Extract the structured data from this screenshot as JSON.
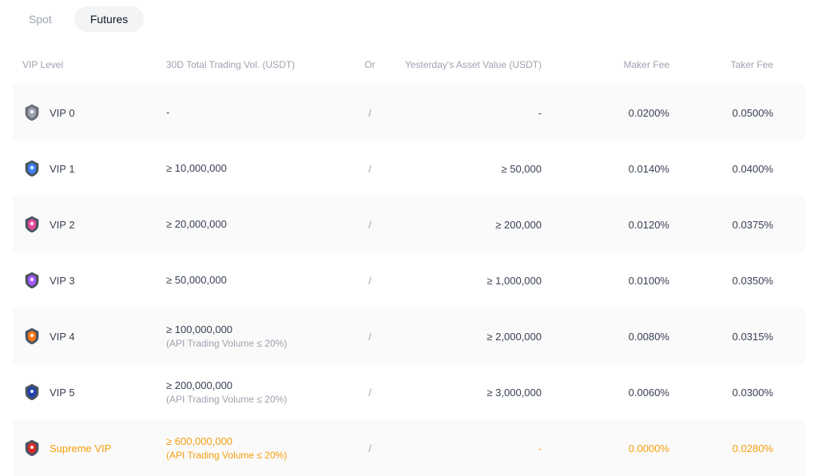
{
  "tabs": {
    "spot": "Spot",
    "futures": "Futures",
    "active": "futures"
  },
  "columns": {
    "vip": "VIP Level",
    "volume": "30D Total Trading Vol. (USDT)",
    "or": "Or",
    "asset": "Yesterday's Asset Value (USDT)",
    "maker": "Maker Fee",
    "taker": "Taker Fee"
  },
  "badge_colors": {
    "vip0": {
      "fill": "#6b7280",
      "accent": "#9ca3af"
    },
    "vip1": {
      "fill": "#4b5563",
      "accent": "#3b82f6"
    },
    "vip2": {
      "fill": "#4b5563",
      "accent": "#ec4899"
    },
    "vip3": {
      "fill": "#4b5563",
      "accent": "#a855f7"
    },
    "vip4": {
      "fill": "#4b5563",
      "accent": "#f97316"
    },
    "vip5": {
      "fill": "#4b5563",
      "accent": "#1e40af"
    },
    "supreme": {
      "fill": "#4b5563",
      "accent": "#dc2626"
    }
  },
  "rows": [
    {
      "label": "VIP 0",
      "volume": "-",
      "sub": "",
      "or": "/",
      "asset": "-",
      "maker": "0.0200%",
      "taker": "0.0500%"
    },
    {
      "label": "VIP 1",
      "volume": "≥ 10,000,000",
      "sub": "",
      "or": "/",
      "asset": "≥ 50,000",
      "maker": "0.0140%",
      "taker": "0.0400%"
    },
    {
      "label": "VIP 2",
      "volume": "≥ 20,000,000",
      "sub": "",
      "or": "/",
      "asset": "≥ 200,000",
      "maker": "0.0120%",
      "taker": "0.0375%"
    },
    {
      "label": "VIP 3",
      "volume": "≥ 50,000,000",
      "sub": "",
      "or": "/",
      "asset": "≥ 1,000,000",
      "maker": "0.0100%",
      "taker": "0.0350%"
    },
    {
      "label": "VIP 4",
      "volume": "≥ 100,000,000",
      "sub": "(API Trading Volume ≤ 20%)",
      "or": "/",
      "asset": "≥ 2,000,000",
      "maker": "0.0080%",
      "taker": "0.0315%"
    },
    {
      "label": "VIP 5",
      "volume": "≥ 200,000,000",
      "sub": "(API Trading Volume ≤ 20%)",
      "or": "/",
      "asset": "≥ 3,000,000",
      "maker": "0.0060%",
      "taker": "0.0300%"
    },
    {
      "label": "Supreme VIP",
      "volume": "≥ 600,000,000",
      "sub": "(API Trading Volume ≤ 20%)",
      "or": "/",
      "asset": "-",
      "maker": "0.0000%",
      "taker": "0.0280%"
    }
  ]
}
